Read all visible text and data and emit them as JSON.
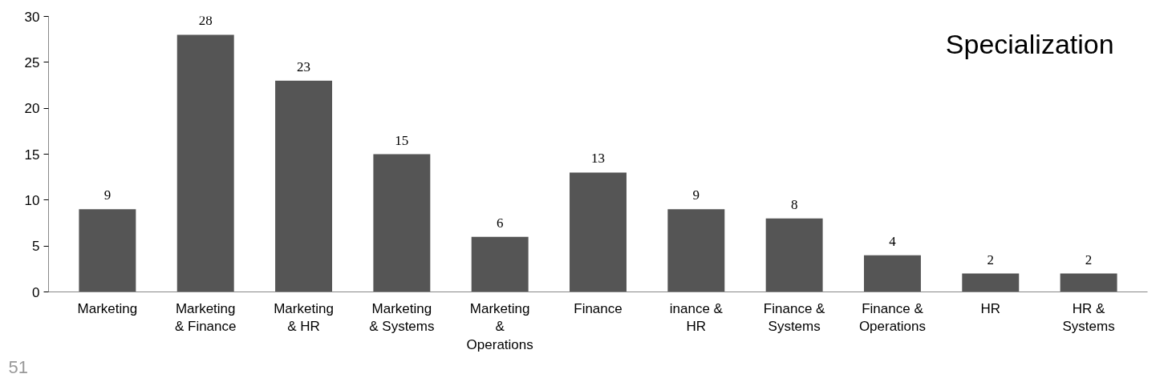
{
  "chart_data": {
    "type": "bar",
    "title": "Specialization",
    "categories": [
      "Marketing",
      "Marketing & Finance",
      "Marketing & HR",
      "Marketing & Systems",
      "Marketing & Operations",
      "Finance",
      "inance & HR",
      "Finance & Systems",
      "Finance & Operations",
      "HR",
      "HR & Systems"
    ],
    "values": [
      9,
      28,
      23,
      15,
      6,
      13,
      9,
      8,
      4,
      2,
      2
    ],
    "color": "#555555",
    "ylim": [
      0,
      30
    ],
    "yticks": [
      0,
      5,
      10,
      15,
      20,
      25,
      30
    ],
    "grid": false,
    "data_labels": true,
    "annotations": [
      "51"
    ]
  }
}
